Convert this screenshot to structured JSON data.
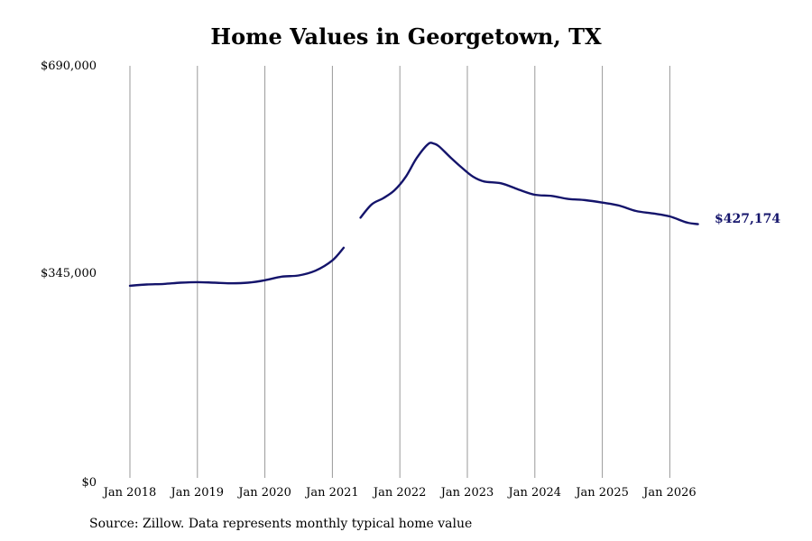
{
  "chart_data": {
    "type": "line",
    "title": "Home Values in Georgetown, TX",
    "source_note": "Source: Zillow. Data represents monthly typical home value",
    "xlabel": "",
    "ylabel": "",
    "ylim": [
      0,
      690000
    ],
    "yticks": [
      0,
      345000,
      690000
    ],
    "ytick_labels": [
      "$0",
      "$345,000",
      "$690,000"
    ],
    "xticks": [
      "2018-01",
      "2019-01",
      "2020-01",
      "2021-01",
      "2022-01",
      "2023-01",
      "2024-01",
      "2025-01",
      "2026-01"
    ],
    "xtick_labels": [
      "Jan 2018",
      "Jan 2019",
      "Jan 2020",
      "Jan 2021",
      "Jan 2022",
      "Jan 2023",
      "Jan 2024",
      "Jan 2025",
      "Jan 2026"
    ],
    "grid": "vertical",
    "line_color": "#14146b",
    "end_label": "$427,174",
    "series": [
      {
        "segments": [
          [
            [
              "2018-01",
              325000
            ],
            [
              "2018-04",
              327000
            ],
            [
              "2018-07",
              328000
            ],
            [
              "2018-10",
              330000
            ],
            [
              "2019-01",
              331000
            ],
            [
              "2019-04",
              330000
            ],
            [
              "2019-07",
              329000
            ],
            [
              "2019-10",
              330000
            ],
            [
              "2020-01",
              334000
            ],
            [
              "2020-04",
              340000
            ],
            [
              "2020-07",
              342000
            ],
            [
              "2020-10",
              350000
            ],
            [
              "2021-01",
              367000
            ],
            [
              "2021-03",
              388000
            ]
          ],
          [
            [
              "2021-06",
              438000
            ],
            [
              "2021-08",
              460000
            ],
            [
              "2021-10",
              470000
            ],
            [
              "2021-12",
              483000
            ],
            [
              "2022-02",
              505000
            ],
            [
              "2022-04",
              537000
            ],
            [
              "2022-06",
              560000
            ],
            [
              "2022-07",
              561000
            ],
            [
              "2022-08",
              556000
            ],
            [
              "2022-10",
              538000
            ],
            [
              "2022-12",
              521000
            ],
            [
              "2023-02",
              506000
            ],
            [
              "2023-04",
              498000
            ],
            [
              "2023-07",
              495000
            ],
            [
              "2023-10",
              485000
            ],
            [
              "2024-01",
              476000
            ],
            [
              "2024-04",
              474000
            ],
            [
              "2024-07",
              469000
            ],
            [
              "2024-10",
              467000
            ],
            [
              "2025-01",
              463000
            ],
            [
              "2025-04",
              458000
            ],
            [
              "2025-07",
              449000
            ],
            [
              "2025-10",
              445000
            ],
            [
              "2026-01",
              440000
            ],
            [
              "2026-04",
              430000
            ],
            [
              "2026-06",
              427174
            ]
          ]
        ]
      }
    ]
  }
}
